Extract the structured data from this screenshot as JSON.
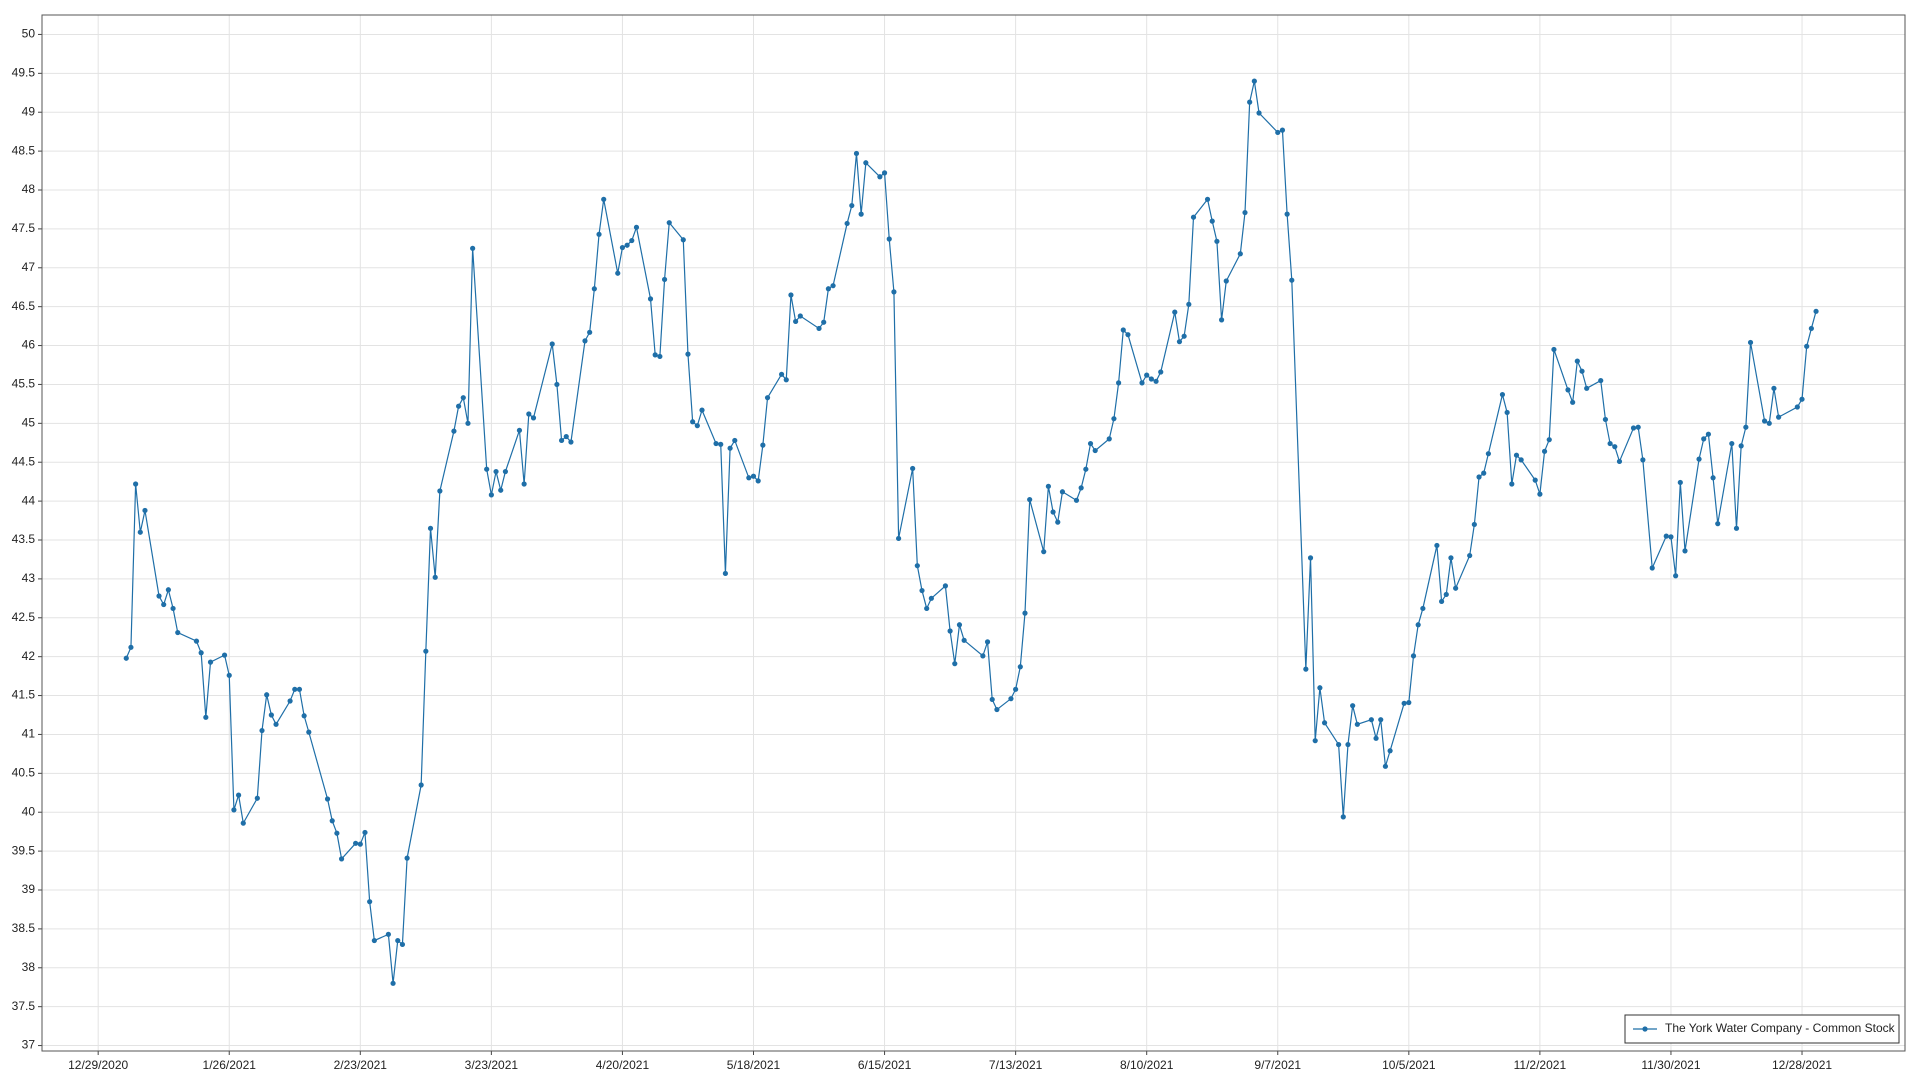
{
  "chart_data": {
    "type": "line",
    "xlim": [
      "12/17/2020",
      "1/19/2022"
    ],
    "xticks": [
      "12/29/2020",
      "1/26/2021",
      "2/23/2021",
      "3/23/2021",
      "4/20/2021",
      "5/18/2021",
      "6/15/2021",
      "7/13/2021",
      "8/10/2021",
      "9/7/2021",
      "10/5/2021",
      "11/2/2021",
      "11/30/2021",
      "12/28/2021"
    ],
    "ylim": [
      36.93,
      50.25
    ],
    "yticks": [
      37,
      37.5,
      38,
      38.5,
      39,
      39.5,
      40,
      40.5,
      41,
      41.5,
      42,
      42.5,
      43,
      43.5,
      44,
      44.5,
      45,
      45.5,
      46,
      46.5,
      47,
      47.5,
      48,
      48.5,
      49,
      49.5,
      50
    ],
    "grid": true,
    "legend": "lower right",
    "x": [
      "1/4/2021",
      "1/5/2021",
      "1/6/2021",
      "1/7/2021",
      "1/8/2021",
      "1/11/2021",
      "1/12/2021",
      "1/13/2021",
      "1/14/2021",
      "1/15/2021",
      "1/19/2021",
      "1/20/2021",
      "1/21/2021",
      "1/22/2021",
      "1/25/2021",
      "1/26/2021",
      "1/27/2021",
      "1/28/2021",
      "1/29/2021",
      "2/1/2021",
      "2/2/2021",
      "2/3/2021",
      "2/4/2021",
      "2/5/2021",
      "2/8/2021",
      "2/9/2021",
      "2/10/2021",
      "2/11/2021",
      "2/12/2021",
      "2/16/2021",
      "2/17/2021",
      "2/18/2021",
      "2/19/2021",
      "2/22/2021",
      "2/23/2021",
      "2/24/2021",
      "2/25/2021",
      "2/26/2021",
      "3/1/2021",
      "3/2/2021",
      "3/3/2021",
      "3/4/2021",
      "3/5/2021",
      "3/8/2021",
      "3/9/2021",
      "3/10/2021",
      "3/11/2021",
      "3/12/2021",
      "3/15/2021",
      "3/16/2021",
      "3/17/2021",
      "3/18/2021",
      "3/19/2021",
      "3/22/2021",
      "3/23/2021",
      "3/24/2021",
      "3/25/2021",
      "3/26/2021",
      "3/29/2021",
      "3/30/2021",
      "3/31/2021",
      "4/1/2021",
      "4/5/2021",
      "4/6/2021",
      "4/7/2021",
      "4/8/2021",
      "4/9/2021",
      "4/12/2021",
      "4/13/2021",
      "4/14/2021",
      "4/15/2021",
      "4/16/2021",
      "4/19/2021",
      "4/20/2021",
      "4/21/2021",
      "4/22/2021",
      "4/23/2021",
      "4/26/2021",
      "4/27/2021",
      "4/28/2021",
      "4/29/2021",
      "4/30/2021",
      "5/3/2021",
      "5/4/2021",
      "5/5/2021",
      "5/6/2021",
      "5/7/2021",
      "5/10/2021",
      "5/11/2021",
      "5/12/2021",
      "5/13/2021",
      "5/14/2021",
      "5/17/2021",
      "5/18/2021",
      "5/19/2021",
      "5/20/2021",
      "5/21/2021",
      "5/24/2021",
      "5/25/2021",
      "5/26/2021",
      "5/27/2021",
      "5/28/2021",
      "6/1/2021",
      "6/2/2021",
      "6/3/2021",
      "6/4/2021",
      "6/7/2021",
      "6/8/2021",
      "6/9/2021",
      "6/10/2021",
      "6/11/2021",
      "6/14/2021",
      "6/15/2021",
      "6/16/2021",
      "6/17/2021",
      "6/18/2021",
      "6/21/2021",
      "6/22/2021",
      "6/23/2021",
      "6/24/2021",
      "6/25/2021",
      "6/28/2021",
      "6/29/2021",
      "6/30/2021",
      "7/1/2021",
      "7/2/2021",
      "7/6/2021",
      "7/7/2021",
      "7/8/2021",
      "7/9/2021",
      "7/12/2021",
      "7/13/2021",
      "7/14/2021",
      "7/15/2021",
      "7/16/2021",
      "7/19/2021",
      "7/20/2021",
      "7/21/2021",
      "7/22/2021",
      "7/23/2021",
      "7/26/2021",
      "7/27/2021",
      "7/28/2021",
      "7/29/2021",
      "7/30/2021",
      "8/2/2021",
      "8/3/2021",
      "8/4/2021",
      "8/5/2021",
      "8/6/2021",
      "8/9/2021",
      "8/10/2021",
      "8/11/2021",
      "8/12/2021",
      "8/13/2021",
      "8/16/2021",
      "8/17/2021",
      "8/18/2021",
      "8/19/2021",
      "8/20/2021",
      "8/23/2021",
      "8/24/2021",
      "8/25/2021",
      "8/26/2021",
      "8/27/2021",
      "8/30/2021",
      "8/31/2021",
      "9/1/2021",
      "9/2/2021",
      "9/3/2021",
      "9/7/2021",
      "9/8/2021",
      "9/9/2021",
      "9/10/2021",
      "9/13/2021",
      "9/14/2021",
      "9/15/2021",
      "9/16/2021",
      "9/17/2021",
      "9/20/2021",
      "9/21/2021",
      "9/22/2021",
      "9/23/2021",
      "9/24/2021",
      "9/27/2021",
      "9/28/2021",
      "9/29/2021",
      "9/30/2021",
      "10/1/2021",
      "10/4/2021",
      "10/5/2021",
      "10/6/2021",
      "10/7/2021",
      "10/8/2021",
      "10/11/2021",
      "10/12/2021",
      "10/13/2021",
      "10/14/2021",
      "10/15/2021",
      "10/18/2021",
      "10/19/2021",
      "10/20/2021",
      "10/21/2021",
      "10/22/2021",
      "10/25/2021",
      "10/26/2021",
      "10/27/2021",
      "10/28/2021",
      "10/29/2021",
      "11/1/2021",
      "11/2/2021",
      "11/3/2021",
      "11/4/2021",
      "11/5/2021",
      "11/8/2021",
      "11/9/2021",
      "11/10/2021",
      "11/11/2021",
      "11/12/2021",
      "11/15/2021",
      "11/16/2021",
      "11/17/2021",
      "11/18/2021",
      "11/19/2021",
      "11/22/2021",
      "11/23/2021",
      "11/24/2021",
      "11/26/2021",
      "11/29/2021",
      "11/30/2021",
      "12/1/2021",
      "12/2/2021",
      "12/3/2021",
      "12/6/2021",
      "12/7/2021",
      "12/8/2021",
      "12/9/2021",
      "12/10/2021",
      "12/13/2021",
      "12/14/2021",
      "12/15/2021",
      "12/16/2021",
      "12/17/2021",
      "12/20/2021",
      "12/21/2021",
      "12/22/2021",
      "12/23/2021",
      "12/27/2021",
      "12/28/2021",
      "12/29/2021",
      "12/30/2021",
      "12/31/2021"
    ],
    "series": [
      {
        "name": "The York Water Company - Common Stock",
        "color": "#1f6fa8",
        "values": [
          41.98,
          42.12,
          44.22,
          43.6,
          43.88,
          42.78,
          42.67,
          42.86,
          42.62,
          42.31,
          42.2,
          42.05,
          41.22,
          41.93,
          42.02,
          41.76,
          40.03,
          40.22,
          39.86,
          40.18,
          41.05,
          41.51,
          41.25,
          41.13,
          41.43,
          41.58,
          41.58,
          41.24,
          41.03,
          40.17,
          39.89,
          39.73,
          39.4,
          39.6,
          39.59,
          39.74,
          38.85,
          38.35,
          38.43,
          37.8,
          38.35,
          38.3,
          39.41,
          40.35,
          42.07,
          43.65,
          43.02,
          44.13,
          44.9,
          45.22,
          45.33,
          45.0,
          47.25,
          44.41,
          44.08,
          44.38,
          44.14,
          44.38,
          44.91,
          44.22,
          45.12,
          45.07,
          46.02,
          45.5,
          44.78,
          44.83,
          44.76,
          46.06,
          46.17,
          46.73,
          47.43,
          47.88,
          46.93,
          47.26,
          47.29,
          47.35,
          47.52,
          46.6,
          45.88,
          45.86,
          46.85,
          47.58,
          47.36,
          45.89,
          45.02,
          44.97,
          45.17,
          44.74,
          44.73,
          43.07,
          44.68,
          44.78,
          44.3,
          44.32,
          44.26,
          44.72,
          45.33,
          45.63,
          45.56,
          46.65,
          46.31,
          46.38,
          46.22,
          46.3,
          46.73,
          46.77,
          47.57,
          47.8,
          48.47,
          47.69,
          48.35,
          48.17,
          48.22,
          47.37,
          46.69,
          43.52,
          44.42,
          43.17,
          42.85,
          42.62,
          42.75,
          42.91,
          42.33,
          41.91,
          42.41,
          42.21,
          42.01,
          42.19,
          41.45,
          41.32,
          41.46,
          41.58,
          41.87,
          42.56,
          44.02,
          43.35,
          44.19,
          43.86,
          43.73,
          44.12,
          44.01,
          44.17,
          44.41,
          44.74,
          44.65,
          44.8,
          45.06,
          45.52,
          46.2,
          46.14,
          45.52,
          45.62,
          45.57,
          45.54,
          45.66,
          46.43,
          46.05,
          46.12,
          46.53,
          47.65,
          47.88,
          47.6,
          47.34,
          46.33,
          46.83,
          47.18,
          47.71,
          49.13,
          49.4,
          48.99,
          48.74,
          48.77,
          47.69,
          46.84,
          41.84,
          43.27,
          40.92,
          41.6,
          41.15,
          40.87,
          39.94,
          40.87,
          41.37,
          41.13,
          41.19,
          40.95,
          41.19,
          40.59,
          40.79,
          41.4,
          41.41,
          42.01,
          42.41,
          42.62,
          43.43,
          42.71,
          42.8,
          43.27,
          42.88,
          43.3,
          43.7,
          44.31,
          44.36,
          44.61,
          45.37,
          45.14,
          44.22,
          44.59,
          44.53,
          44.27,
          44.09,
          44.64,
          44.79,
          45.95,
          45.43,
          45.27,
          45.8,
          45.67,
          45.45,
          45.55,
          45.05,
          44.74,
          44.7,
          44.51,
          44.94,
          44.95,
          44.53,
          43.14,
          43.55,
          43.54,
          43.04,
          44.24,
          43.36,
          44.54,
          44.8,
          44.86,
          44.3,
          43.71,
          44.74,
          43.65,
          44.71,
          44.95,
          46.04,
          45.03,
          45.0,
          45.45,
          45.08,
          45.21,
          45.31,
          45.99,
          46.22,
          46.44
        ]
      }
    ]
  }
}
